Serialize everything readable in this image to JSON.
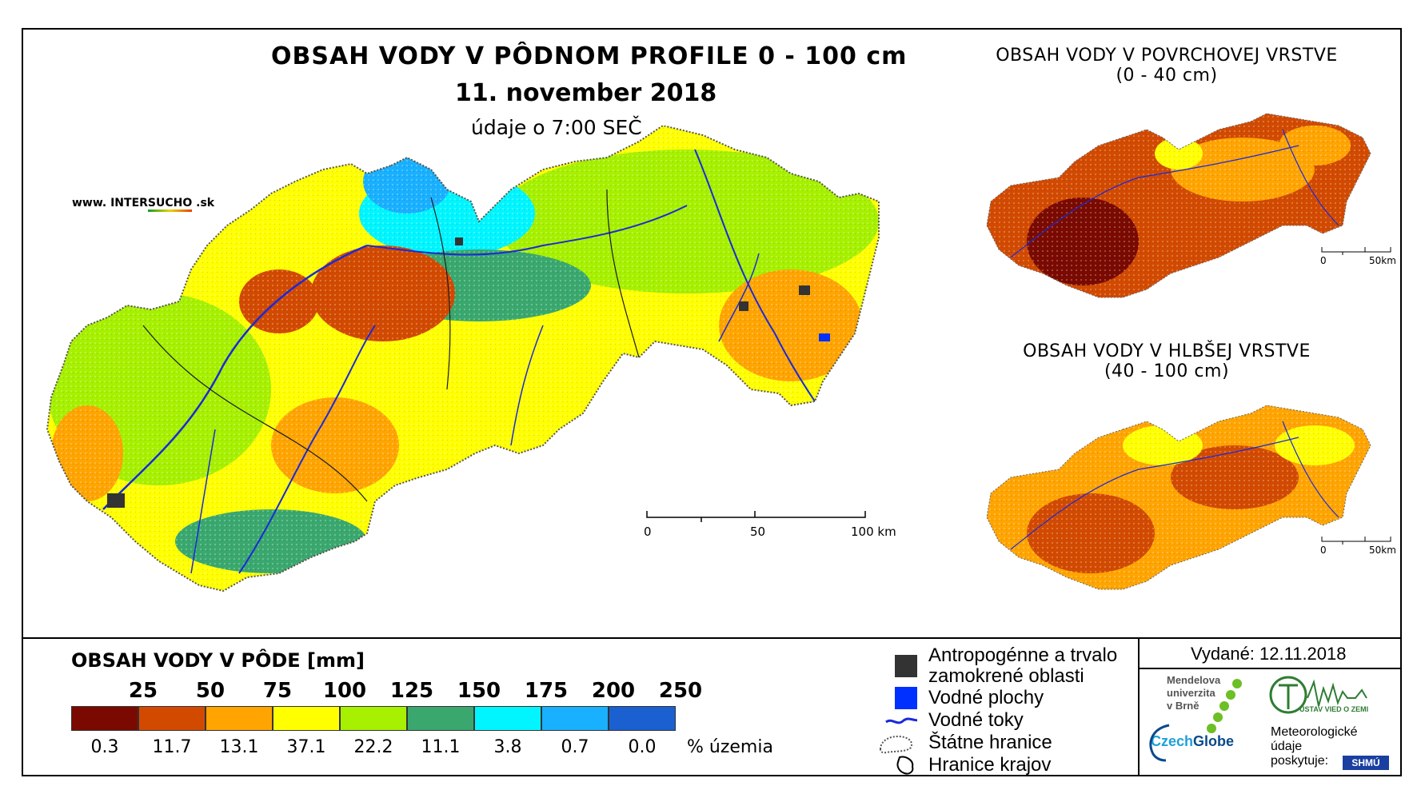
{
  "colors": {
    "c25": "#7a0a00",
    "c50": "#d24a00",
    "c75": "#ffa400",
    "c100": "#ffff00",
    "c125": "#a6f000",
    "c150": "#3aa86e",
    "c175": "#00f5ff",
    "c200": "#19b0ff",
    "c250": "#1a60d0",
    "river": "#1a2ad8",
    "urban": "#333333"
  },
  "header": {
    "main_title": "OBSAH VODY V PÔDNOM PROFILE 0 - 100 cm",
    "date": "11. november 2018",
    "time": "údaje o 7:00 SEČ",
    "website_prefix": "www. INTER",
    "website_highlight": "SUCHO",
    "website_suffix": " .sk"
  },
  "side_maps": {
    "top": {
      "title_line1": "OBSAH VODY V POVRCHOVEJ VRSTVE",
      "title_line2": "(0 - 40 cm)"
    },
    "bottom": {
      "title_line1": "OBSAH VODY V HLBŠEJ VRSTVE",
      "title_line2": "(40 - 100 cm)"
    },
    "scale_zero": "0",
    "scale_end": "50km"
  },
  "main_scale": {
    "zero": "0",
    "mid": "50",
    "end": "100 km"
  },
  "legend": {
    "title": "OBSAH VODY V PÔDE [mm]",
    "class_labels": [
      "25",
      "50",
      "75",
      "100",
      "125",
      "150",
      "175",
      "200",
      "250"
    ],
    "percentages": [
      "0.3",
      "11.7",
      "13.1",
      "37.1",
      "22.2",
      "11.1",
      "3.8",
      "0.7",
      "0.0"
    ],
    "percent_unit": "% územia"
  },
  "key": {
    "urban_line1": "Antropogénne a trvalo",
    "urban_line2": "zamokrené oblasti",
    "water_bodies": "Vodné plochy",
    "rivers": "Vodné toky",
    "state_border": "Štátne hranice",
    "region_border": "Hranice krajov"
  },
  "issued": "Vydané: 12.11.2018",
  "logos": {
    "mendel_line1": "Mendelova",
    "mendel_line2": "univerzita",
    "mendel_line3": "v Brně",
    "czechglobe_a": "Czech",
    "czechglobe_b": "Globe",
    "uvz": "ÚSTAV VIED O ZEMI",
    "meteo_line1": "Meteorologické",
    "meteo_line2": "údaje",
    "meteo_line3": "poskytuje:",
    "shmu": "SHMÚ"
  }
}
